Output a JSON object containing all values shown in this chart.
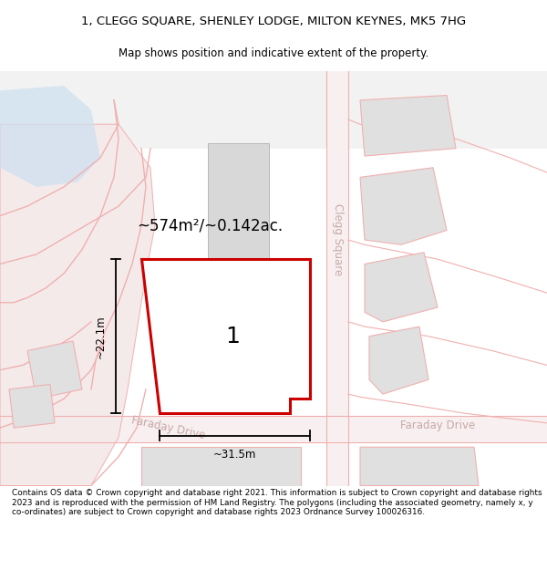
{
  "title_line1": "1, CLEGG SQUARE, SHENLEY LODGE, MILTON KEYNES, MK5 7HG",
  "title_line2": "Map shows position and indicative extent of the property.",
  "footer_text": "Contains OS data © Crown copyright and database right 2021. This information is subject to Crown copyright and database rights 2023 and is reproduced with the permission of HM Land Registry. The polygons (including the associated geometry, namely x, y co-ordinates) are subject to Crown copyright and database rights 2023 Ordnance Survey 100026316.",
  "bg_color": "#f0f0f0",
  "road_color": "#f0b0b0",
  "road_fill": "#f5e5e5",
  "block_fill": "#e0e0e0",
  "block_edge": "#c8c8c8",
  "highlight_stroke": "#cc0000",
  "area_label": "~574m²/~0.142ac.",
  "parcel_number": "1",
  "dim_width": "~31.5m",
  "dim_height": "~22.1m",
  "street_label_left": "Faraday Drive",
  "street_label_right": "Faraday Drive",
  "street_label_vert": "Clegg Square",
  "blue_fill": "#cce0f0"
}
